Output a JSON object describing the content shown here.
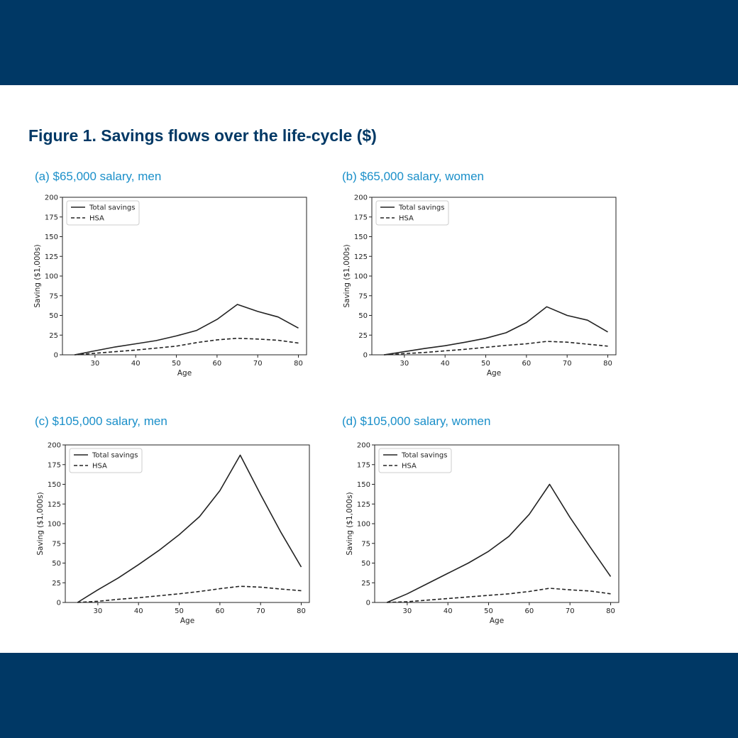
{
  "page": {
    "figure_title": "Figure 1. Savings flows over the life-cycle ($)",
    "colors": {
      "band": "#003865",
      "title": "#003865",
      "panel_title": "#1a8fc9"
    }
  },
  "chart_data": [
    {
      "panel_title": "(a) $65,000 salary, men",
      "type": "line",
      "xlabel": "Age",
      "ylabel": "Saving ($1,000s)",
      "xlim": [
        22,
        82
      ],
      "ylim": [
        0,
        200
      ],
      "xticks": [
        30,
        40,
        50,
        60,
        70,
        80
      ],
      "yticks": [
        0,
        25,
        50,
        75,
        100,
        125,
        150,
        175,
        200
      ],
      "legend": "upper-left",
      "x": [
        25,
        30,
        35,
        40,
        45,
        50,
        55,
        60,
        65,
        70,
        75,
        80
      ],
      "series": [
        {
          "name": "Total savings",
          "style": "solid",
          "values": [
            0,
            5,
            10,
            14,
            18,
            24,
            31,
            45,
            64,
            55,
            48,
            34
          ]
        },
        {
          "name": "HSA",
          "style": "dashed",
          "values": [
            0,
            2,
            4,
            6,
            8.5,
            11,
            15.5,
            19,
            21,
            20,
            18.5,
            15
          ]
        }
      ]
    },
    {
      "panel_title": "(b) $65,000 salary, women",
      "type": "line",
      "xlabel": "Age",
      "ylabel": "Saving ($1,000s)",
      "xlim": [
        22,
        82
      ],
      "ylim": [
        0,
        200
      ],
      "xticks": [
        30,
        40,
        50,
        60,
        70,
        80
      ],
      "yticks": [
        0,
        25,
        50,
        75,
        100,
        125,
        150,
        175,
        200
      ],
      "legend": "upper-left",
      "x": [
        25,
        30,
        35,
        40,
        45,
        50,
        55,
        60,
        65,
        70,
        75,
        80
      ],
      "series": [
        {
          "name": "Total savings",
          "style": "solid",
          "values": [
            0,
            4,
            8,
            11.5,
            16,
            21,
            28,
            41,
            61,
            50,
            44,
            29
          ]
        },
        {
          "name": "HSA",
          "style": "dashed",
          "values": [
            0,
            1.5,
            3,
            5,
            7,
            9.5,
            12,
            14,
            17,
            16,
            13.5,
            11
          ]
        }
      ]
    },
    {
      "panel_title": "(c) $105,000 salary, men",
      "type": "line",
      "xlabel": "Age",
      "ylabel": "Saving ($1,000s)",
      "xlim": [
        22,
        82
      ],
      "ylim": [
        0,
        200
      ],
      "xticks": [
        30,
        40,
        50,
        60,
        70,
        80
      ],
      "yticks": [
        0,
        25,
        50,
        75,
        100,
        125,
        150,
        175,
        200
      ],
      "legend": "upper-left",
      "x": [
        25,
        30,
        35,
        40,
        45,
        50,
        55,
        60,
        65,
        70,
        75,
        80
      ],
      "series": [
        {
          "name": "Total savings",
          "style": "solid",
          "values": [
            0,
            16,
            31,
            48,
            66,
            86,
            109,
            142,
            187,
            137,
            89,
            45
          ]
        },
        {
          "name": "HSA",
          "style": "dashed",
          "values": [
            0,
            1.5,
            4,
            6,
            8.5,
            11,
            14,
            17.5,
            20.5,
            19.5,
            17,
            15
          ]
        }
      ]
    },
    {
      "panel_title": "(d) $105,000 salary, women",
      "type": "line",
      "xlabel": "Age",
      "ylabel": "Saving ($1,000s)",
      "xlim": [
        22,
        82
      ],
      "ylim": [
        0,
        200
      ],
      "xticks": [
        30,
        40,
        50,
        60,
        70,
        80
      ],
      "yticks": [
        0,
        25,
        50,
        75,
        100,
        125,
        150,
        175,
        200
      ],
      "legend": "upper-left",
      "x": [
        25,
        30,
        35,
        40,
        45,
        50,
        55,
        60,
        65,
        70,
        75,
        80
      ],
      "series": [
        {
          "name": "Total savings",
          "style": "solid",
          "values": [
            0,
            11,
            24,
            37,
            50,
            65,
            84,
            112,
            150,
            108,
            70,
            33
          ]
        },
        {
          "name": "HSA",
          "style": "dashed",
          "values": [
            0,
            1,
            3,
            5,
            7,
            9,
            11,
            14,
            18,
            16,
            14.5,
            11
          ]
        }
      ]
    }
  ]
}
